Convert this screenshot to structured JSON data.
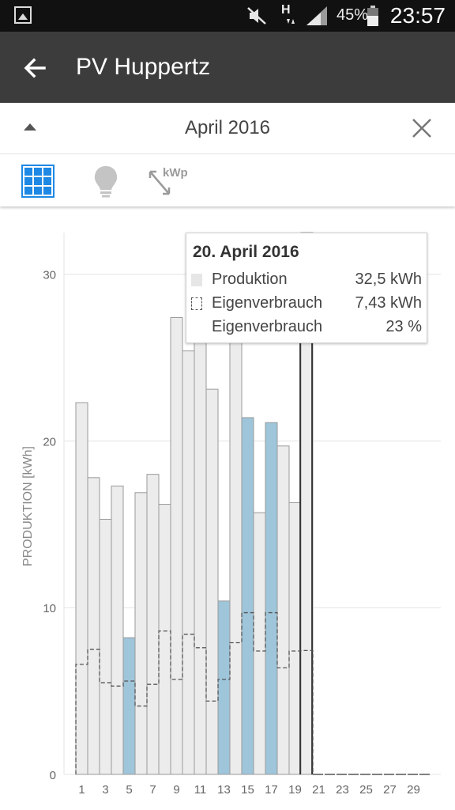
{
  "status_bar": {
    "network_type": "H",
    "battery_percent": "45%",
    "time": "23:57",
    "icons": [
      "gallery-notification-icon",
      "mute-icon",
      "signal-icon",
      "battery-icon"
    ]
  },
  "app_bar": {
    "title": "PV Huppertz",
    "back_icon": "arrow-left-icon"
  },
  "month_bar": {
    "label": "April 2016",
    "collapse_icon": "triangle-up-icon",
    "close_icon": "close-icon"
  },
  "toolbar": {
    "tools": [
      {
        "name": "panel-grid-icon",
        "active": true
      },
      {
        "name": "lightbulb-icon",
        "active": false
      },
      {
        "name": "kwp-scale-icon",
        "label": "kWp",
        "active": false
      }
    ]
  },
  "tooltip": {
    "title": "20. April 2016",
    "rows": [
      {
        "label": "Produktion",
        "value": "32,5 kWh"
      },
      {
        "label": "Eigenverbrauch",
        "value": "7,43 kWh"
      },
      {
        "label": "Eigenverbrauch",
        "value": "23 %"
      }
    ]
  },
  "colors": {
    "production_bar": "#ececec",
    "production_border": "#9a9a9a",
    "highlight_bar": "#9ec5da",
    "self_consumption_line": "#555555",
    "grid": "#e4e4e4",
    "axis_text": "#666666"
  },
  "chart_data": {
    "type": "bar",
    "ylabel": "PRODUKTION [kWh]",
    "ylim": [
      0,
      32.5
    ],
    "yticks": [
      0,
      10,
      20,
      30
    ],
    "x": [
      1,
      2,
      3,
      4,
      5,
      6,
      7,
      8,
      9,
      10,
      11,
      12,
      13,
      14,
      15,
      16,
      17,
      18,
      19,
      20,
      21,
      22,
      23,
      24,
      25,
      26,
      27,
      28,
      29,
      30
    ],
    "xtick_labels": [
      "1",
      "3",
      "5",
      "7",
      "9",
      "11",
      "13",
      "15",
      "17",
      "19",
      "21",
      "23",
      "25",
      "27",
      "29"
    ],
    "series": [
      {
        "name": "Produktion",
        "kind": "bar",
        "values": [
          22.3,
          17.8,
          15.3,
          17.3,
          8.2,
          16.9,
          18.0,
          16.2,
          27.4,
          25.4,
          26.5,
          23.1,
          10.4,
          26.5,
          21.4,
          15.7,
          21.1,
          19.7,
          16.3,
          32.5,
          0,
          0,
          0,
          0,
          0,
          0,
          0,
          0,
          0,
          0
        ],
        "highlighted_days": [
          5,
          13,
          15,
          17
        ]
      },
      {
        "name": "Eigenverbrauch",
        "kind": "step",
        "values": [
          6.6,
          7.5,
          5.5,
          5.3,
          5.6,
          4.1,
          5.4,
          8.6,
          5.7,
          8.4,
          7.6,
          4.4,
          5.7,
          7.9,
          9.7,
          7.4,
          9.7,
          6.4,
          7.4,
          7.43,
          0,
          0,
          0,
          0,
          0,
          0,
          0,
          0,
          0,
          0
        ]
      }
    ],
    "selected_day": 20,
    "grid": true
  }
}
